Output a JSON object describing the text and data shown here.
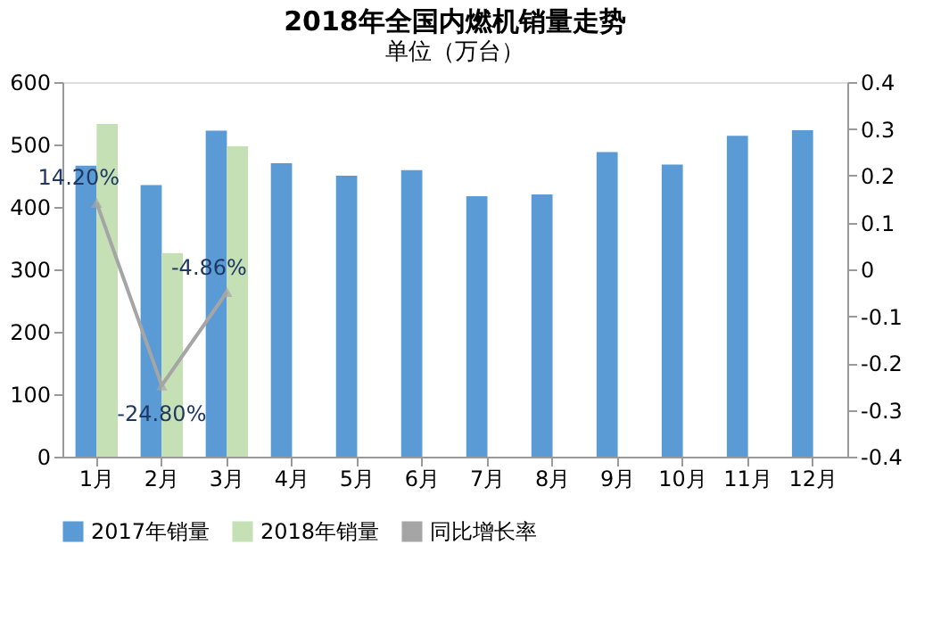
{
  "chart_data": {
    "type": "bar",
    "title": "2018年全国内燃机销量走势",
    "subtitle": "单位（万台）",
    "categories": [
      "1月",
      "2月",
      "3月",
      "4月",
      "5月",
      "6月",
      "7月",
      "8月",
      "9月",
      "10月",
      "11月",
      "12月"
    ],
    "series": [
      {
        "name": "2017年销量",
        "color": "#5b9bd5",
        "values": [
          466,
          435,
          522,
          470,
          450,
          459,
          417,
          420,
          488,
          468,
          514,
          523
        ]
      },
      {
        "name": "2018年销量",
        "color": "#c5e0b4",
        "values": [
          533,
          326,
          497,
          null,
          null,
          null,
          null,
          null,
          null,
          null,
          null,
          null
        ]
      },
      {
        "name": "同比增长率",
        "color": "#a5a5a5",
        "type": "line",
        "axis": "y2",
        "marker": "triangle",
        "values": [
          0.142,
          -0.248,
          -0.0486,
          null,
          null,
          null,
          null,
          null,
          null,
          null,
          null,
          null
        ],
        "value_labels": [
          "14.20%",
          "-24.80%",
          "-4.86%",
          null,
          null,
          null,
          null,
          null,
          null,
          null,
          null,
          null
        ]
      }
    ],
    "ylim": [
      0,
      600
    ],
    "yticks": [
      0,
      100,
      200,
      300,
      400,
      500,
      600
    ],
    "y2lim": [
      -0.4,
      0.4
    ],
    "y2ticks": [
      -0.4,
      -0.3,
      -0.2,
      -0.1,
      0,
      0.1,
      0.2,
      0.3,
      0.4
    ],
    "legend": "bottom",
    "grid": false
  }
}
